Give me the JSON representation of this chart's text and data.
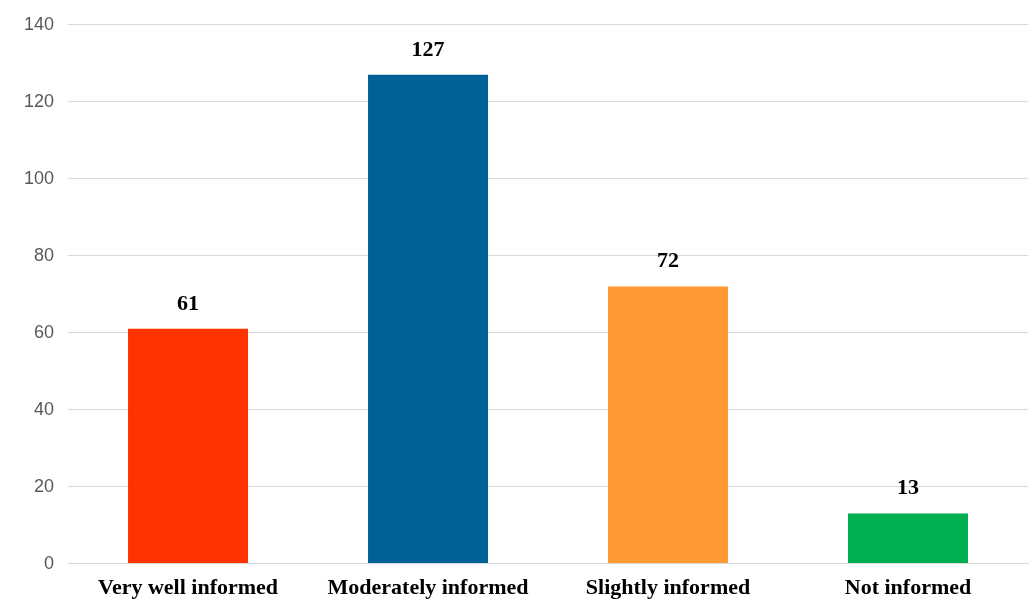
{
  "chart_data": {
    "type": "bar",
    "categories": [
      "Very well informed",
      "Moderately informed",
      "Slightly informed",
      "Not informed"
    ],
    "values": [
      61,
      127,
      72,
      13
    ],
    "colors": [
      "#ff3300",
      "#006196",
      "#ff9933",
      "#00b050"
    ],
    "ylim": [
      0,
      140
    ],
    "yticks": [
      0,
      20,
      40,
      60,
      80,
      100,
      120,
      140
    ],
    "grid": "y",
    "legend": false,
    "data_labels": true
  }
}
